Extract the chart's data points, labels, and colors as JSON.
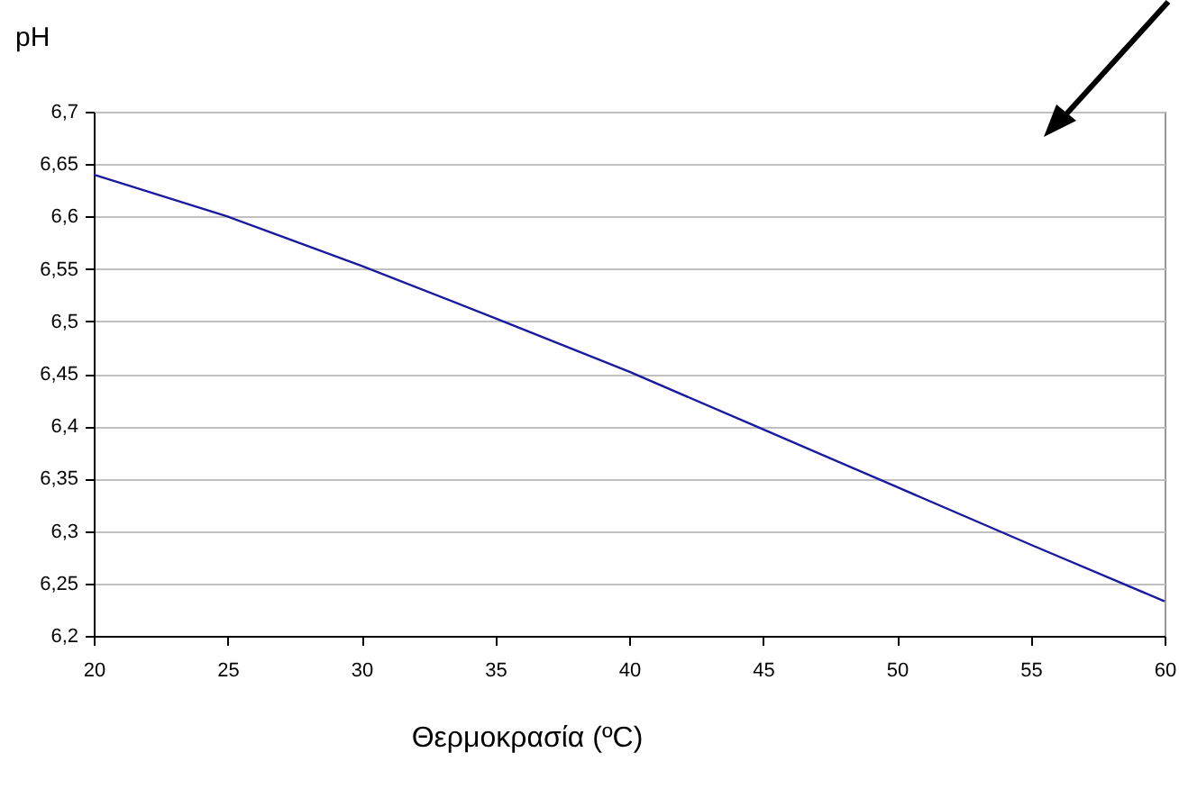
{
  "chart_data": {
    "type": "line",
    "xlabel": "Θερμοκρασία (ºC)",
    "ylabel": "pH",
    "x": [
      20,
      25,
      30,
      35,
      40,
      45,
      50,
      55,
      60
    ],
    "series": [
      {
        "color": "#1a1aa0",
        "values": [
          6.64,
          6.6,
          6.553,
          6.503,
          6.452,
          6.397,
          6.342,
          6.287,
          6.233
        ]
      }
    ],
    "xlim": [
      20,
      60
    ],
    "xticks": [
      20,
      25,
      30,
      35,
      40,
      45,
      50,
      55,
      60
    ],
    "ylim": [
      6.2,
      6.7
    ],
    "yticks": [
      {
        "value": 6.2,
        "label": "6,2"
      },
      {
        "value": 6.25,
        "label": "6,25"
      },
      {
        "value": 6.3,
        "label": "6,3"
      },
      {
        "value": 6.35,
        "label": "6,35"
      },
      {
        "value": 6.4,
        "label": "6,4"
      },
      {
        "value": 6.45,
        "label": "6,45"
      },
      {
        "value": 6.5,
        "label": "6,5"
      },
      {
        "value": 6.55,
        "label": "6,55"
      },
      {
        "value": 6.6,
        "label": "6,6"
      },
      {
        "value": 6.65,
        "label": "6,65"
      },
      {
        "value": 6.7,
        "label": "6,7"
      }
    ],
    "grid": "y",
    "marker": "none",
    "line_style": "solid",
    "legend": false
  }
}
